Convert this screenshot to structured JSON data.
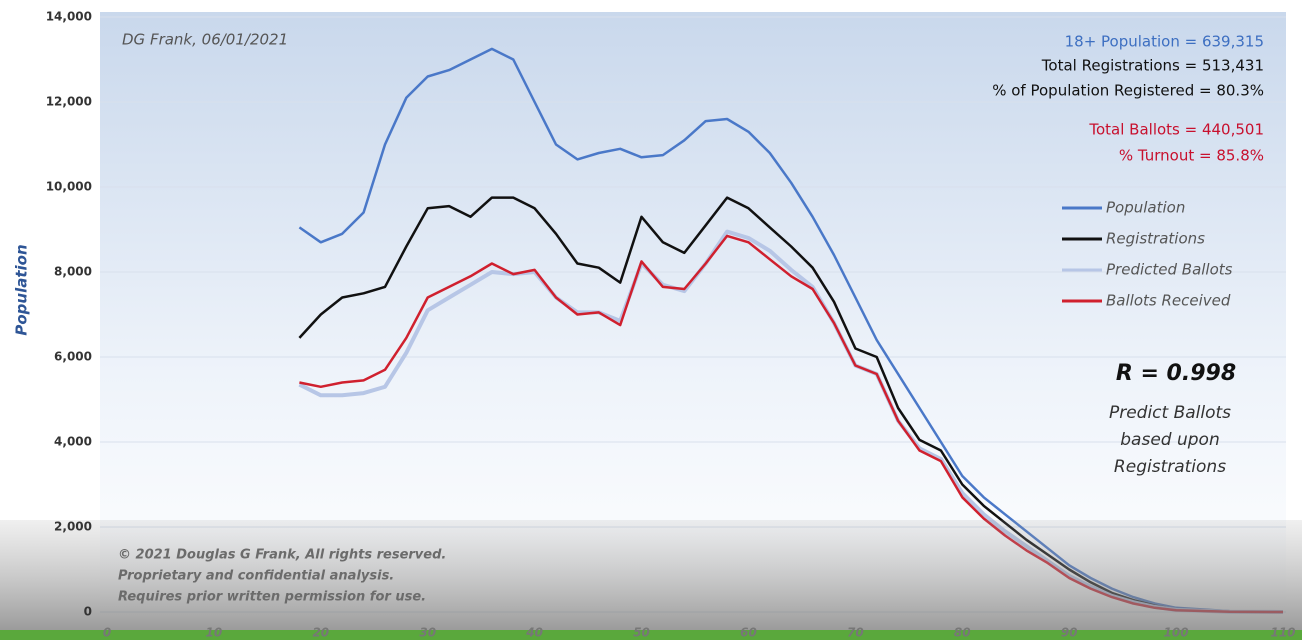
{
  "chart_data": {
    "type": "line",
    "y_label": "Population",
    "credit": "DG Frank, 06/01/2021",
    "stats": [
      {
        "text": "18+ Population = 639,315",
        "color": "#3d6fc1"
      },
      {
        "text": "Total Registrations = 513,431",
        "color": "#111111"
      },
      {
        "text": "% of Population Registered = 80.3%",
        "color": "#111111"
      },
      {
        "text": "Total Ballots = 440,501",
        "color": "#c8102e"
      },
      {
        "text": "% Turnout = 85.8%",
        "color": "#c8102e"
      }
    ],
    "r_label": "R = 0.998",
    "note": [
      "Predict Ballots",
      "based upon",
      "Registrations"
    ],
    "copyright": [
      "© 2021 Douglas G Frank, All rights reserved.",
      "Proprietary and confidential analysis.",
      "Requires prior written permission for use."
    ],
    "x": [
      18,
      20,
      22,
      24,
      26,
      28,
      30,
      32,
      34,
      36,
      38,
      40,
      42,
      44,
      46,
      48,
      50,
      52,
      54,
      56,
      58,
      60,
      62,
      64,
      66,
      68,
      70,
      72,
      74,
      76,
      78,
      80,
      82,
      84,
      86,
      88,
      90,
      92,
      94,
      96,
      98,
      100,
      105,
      110
    ],
    "series": [
      {
        "name": "Population",
        "color": "#4a78c8",
        "values": [
          9050,
          8700,
          8900,
          9400,
          11000,
          12100,
          12600,
          12750,
          13000,
          13250,
          13000,
          12000,
          11000,
          10650,
          10800,
          10900,
          10700,
          10750,
          11100,
          11550,
          11600,
          11300,
          10800,
          10100,
          9300,
          8400,
          7400,
          6400,
          5600,
          4800,
          4000,
          3200,
          2700,
          2300,
          1900,
          1500,
          1100,
          800,
          550,
          350,
          200,
          100,
          20,
          0
        ]
      },
      {
        "name": "Registrations",
        "color": "#111111",
        "values": [
          6450,
          7000,
          7400,
          7500,
          7650,
          8600,
          9500,
          9550,
          9300,
          9750,
          9750,
          9500,
          8900,
          8200,
          8100,
          7750,
          9300,
          8700,
          8450,
          9100,
          9750,
          9500,
          9050,
          8600,
          8100,
          7300,
          6200,
          6000,
          4800,
          4050,
          3800,
          3000,
          2500,
          2100,
          1700,
          1350,
          1000,
          700,
          450,
          280,
          150,
          60,
          10,
          0
        ]
      },
      {
        "name": "Predicted Ballots",
        "color": "#b7c6e6",
        "values": [
          5350,
          5100,
          5100,
          5150,
          5300,
          6100,
          7100,
          7400,
          7700,
          8000,
          7950,
          8000,
          7400,
          7050,
          7050,
          6850,
          8200,
          7700,
          7550,
          8200,
          8950,
          8800,
          8500,
          8050,
          7650,
          6800,
          5800,
          5600,
          4500,
          3850,
          3600,
          2800,
          2300,
          1900,
          1550,
          1200,
          850,
          600,
          380,
          230,
          120,
          50,
          8,
          0
        ]
      },
      {
        "name": "Ballots Received",
        "color": "#d0202e",
        "values": [
          5400,
          5300,
          5400,
          5450,
          5700,
          6450,
          7400,
          7650,
          7900,
          8200,
          7950,
          8050,
          7400,
          7000,
          7050,
          6750,
          8250,
          7650,
          7600,
          8200,
          8850,
          8700,
          8300,
          7900,
          7600,
          6800,
          5800,
          5600,
          4500,
          3800,
          3550,
          2700,
          2200,
          1800,
          1450,
          1150,
          800,
          550,
          350,
          200,
          100,
          40,
          5,
          0
        ]
      }
    ],
    "xlim": [
      0,
      110
    ],
    "xticks": [
      0,
      10,
      20,
      30,
      40,
      50,
      60,
      70,
      80,
      90,
      100,
      110
    ],
    "ylim": [
      0,
      14000
    ],
    "yticks": [
      0,
      {
        "value": 2000,
        "label": "2,000"
      },
      {
        "value": 4000,
        "label": "4,000"
      },
      {
        "value": 6000,
        "label": "6,000"
      },
      {
        "value": 8000,
        "label": "8,000"
      },
      {
        "value": 10000,
        "label": "10,000"
      },
      {
        "value": 12000,
        "label": "12,000"
      },
      {
        "value": 14000,
        "label": "14,000"
      }
    ],
    "grid": true
  }
}
